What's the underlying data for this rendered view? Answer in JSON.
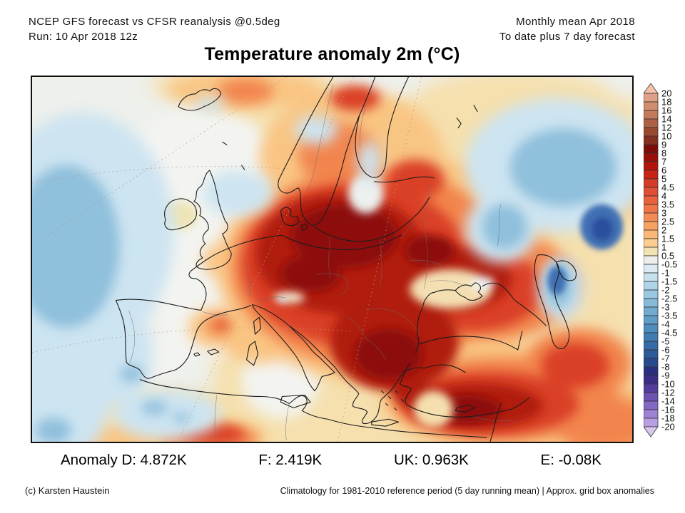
{
  "header": {
    "left_line1": "NCEP GFS forecast vs CFSR reanalysis @0.5deg",
    "left_line2": "Run: 10 Apr 2018 12z",
    "right_line1": "Monthly mean Apr 2018",
    "right_line2": "To date plus 7 day forecast"
  },
  "title": "Temperature anomaly 2m (°C)",
  "colorbar": {
    "ticks": [
      "20",
      "18",
      "16",
      "14",
      "12",
      "10",
      "9",
      "8",
      "7",
      "6",
      "5",
      "4.5",
      "4",
      "3.5",
      "3",
      "2.5",
      "2",
      "1.5",
      "1",
      "0.5",
      "-0.5",
      "-1",
      "-1.5",
      "-2",
      "-2.5",
      "-3",
      "-3.5",
      "-4",
      "-4.5",
      "-5",
      "-6",
      "-7",
      "-8",
      "-9",
      "-10",
      "-12",
      "-14",
      "-16",
      "-18",
      "-20"
    ],
    "segment_colors": [
      "#dfa087",
      "#d18e6e",
      "#c27a58",
      "#ae6245",
      "#9a4a31",
      "#833020",
      "#7c0d09",
      "#990f0a",
      "#b3140d",
      "#c92316",
      "#d63a28",
      "#e04e33",
      "#e8613c",
      "#ee7646",
      "#f38b54",
      "#f6a263",
      "#f9b877",
      "#fbcd90",
      "#f2e3b1",
      "#edefeb",
      "#dcebf3",
      "#c6e0ee",
      "#afd4e8",
      "#9ac8e0",
      "#85bad8",
      "#71abd0",
      "#5f9cc7",
      "#4e8cbd",
      "#407bb2",
      "#356aa6",
      "#2d5a9a",
      "#27498d",
      "#2b2f80",
      "#3d2d88",
      "#543c9d",
      "#6c52b1",
      "#8568c3",
      "#9e82d3",
      "#b89ee2"
    ],
    "arrow_top_color": "#f3c3a9",
    "arrow_bottom_color": "#d9c6ef",
    "outline_color": "#333333"
  },
  "stats": {
    "items": [
      "Anomaly D: 4.872K",
      "F: 2.419K",
      "UK: 0.963K",
      "E: -0.08K"
    ]
  },
  "footer": {
    "left": "(c) Karsten Haustein",
    "right": "Climatology for 1981-2010 reference period (5 day running mean) | Approx. grid box anomalies"
  }
}
